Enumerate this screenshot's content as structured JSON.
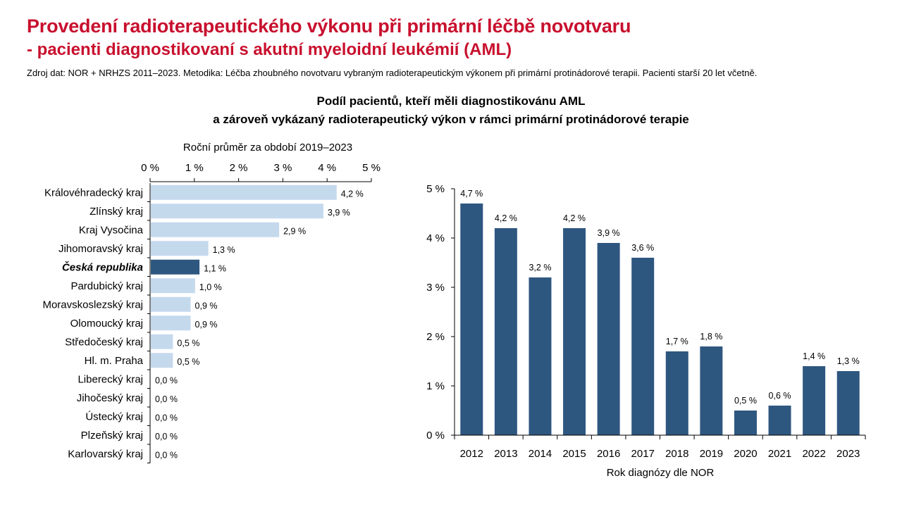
{
  "header": {
    "title": "Provedení radioterapeutického výkonu při primární léčbě novotvaru",
    "subtitle": "- pacienti diagnostikovaní s akutní myeloidní leukémií (AML)",
    "source": "Zdroj dat: NOR + NRHZS 2011–2023. Metodika: Léčba zhoubného novotvaru vybraným radioterapeutickým výkonem při primární protinádorové terapii. Pacienti starší 20 let včetně."
  },
  "chart_heading": {
    "line1": "Podíl pacientů, kteří měli diagnostikovánu AML",
    "line2": "a zároveň vykázaný radioterapeutický výkon v rámci primární protinádorové terapie"
  },
  "colors": {
    "region_bar": "#c5d9ed",
    "national_bar": "#2e5780",
    "year_bar": "#2e5780"
  },
  "chart_data": [
    {
      "type": "bar",
      "orientation": "horizontal",
      "title": "Roční průměr za období 2019–2023",
      "xlabel": "",
      "ylabel": "",
      "xlim": [
        0,
        5
      ],
      "x_ticks": [
        "0 %",
        "1 %",
        "2 %",
        "3 %",
        "4 %",
        "5 %"
      ],
      "axis_position": "top",
      "grid": false,
      "categories": [
        "Královéhradecký kraj",
        "Zlínský kraj",
        "Kraj Vysočina",
        "Jihomoravský kraj",
        "Česká republika",
        "Pardubický kraj",
        "Moravskoslezský kraj",
        "Olomoucký kraj",
        "Středočeský kraj",
        "Hl. m. Praha",
        "Liberecký kraj",
        "Jihočeský kraj",
        "Ústecký kraj",
        "Plzeňský kraj",
        "Karlovarský kraj"
      ],
      "values": [
        4.2,
        3.9,
        2.9,
        1.3,
        1.1,
        1.0,
        0.9,
        0.9,
        0.5,
        0.5,
        0.0,
        0.0,
        0.0,
        0.0,
        0.0
      ],
      "data_labels": [
        "4,2 %",
        "3,9 %",
        "2,9 %",
        "1,3 %",
        "1,1 %",
        "1,0 %",
        "0,9 %",
        "0,9 %",
        "0,5 %",
        "0,5 %",
        "0,0 %",
        "0,0 %",
        "0,0 %",
        "0,0 %",
        "0,0 %"
      ],
      "highlight": "Česká republika"
    },
    {
      "type": "bar",
      "orientation": "vertical",
      "title": "",
      "xlabel": "Rok diagnózy dle NOR",
      "ylabel": "",
      "ylim": [
        0,
        5
      ],
      "y_ticks": [
        "0 %",
        "1 %",
        "2 %",
        "3 %",
        "4 %",
        "5 %"
      ],
      "grid": false,
      "categories": [
        "2012",
        "2013",
        "2014",
        "2015",
        "2016",
        "2017",
        "2018",
        "2019",
        "2020",
        "2021",
        "2022",
        "2023"
      ],
      "values": [
        4.7,
        4.2,
        3.2,
        4.2,
        3.9,
        3.6,
        1.7,
        1.8,
        0.5,
        0.6,
        1.4,
        1.3
      ],
      "data_labels": [
        "4,7 %",
        "4,2 %",
        "3,2 %",
        "4,2 %",
        "3,9 %",
        "3,6 %",
        "1,7 %",
        "1,8 %",
        "0,5 %",
        "0,6 %",
        "1,4 %",
        "1,3 %"
      ]
    }
  ]
}
